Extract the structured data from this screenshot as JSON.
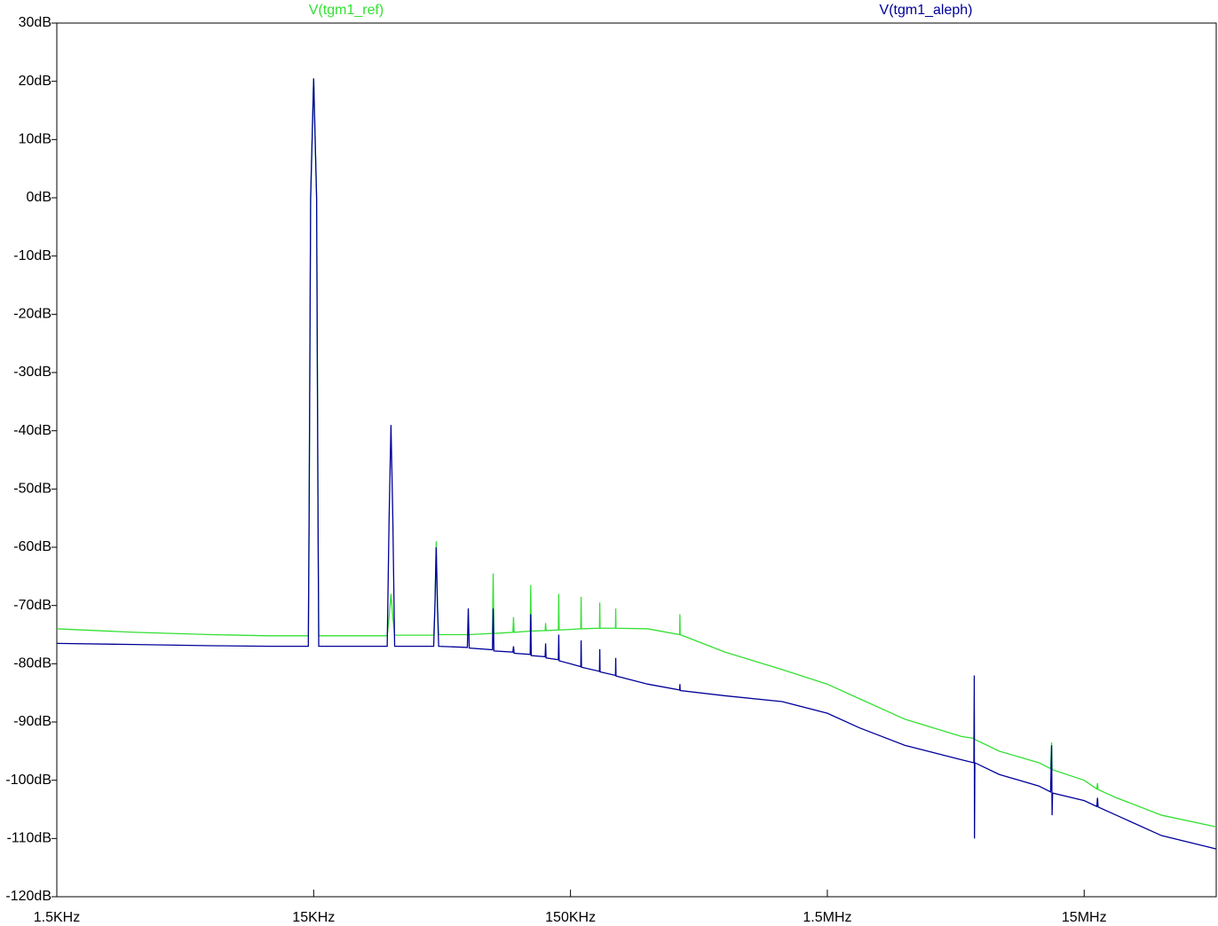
{
  "chart_data": {
    "type": "line",
    "x": [
      1500,
      3000,
      6000,
      10000,
      14000,
      14300,
      14400,
      14600,
      15000,
      15400,
      15600,
      15700,
      29000,
      29500,
      30000,
      30500,
      31000,
      44000,
      44500,
      45000,
      45500,
      46000,
      59500,
      60000,
      60500,
      74500,
      75000,
      75500,
      89500,
      90000,
      90500,
      104500,
      105000,
      105500,
      119500,
      120000,
      120500,
      134500,
      135000,
      135500,
      150000,
      164500,
      165000,
      165500,
      194500,
      195000,
      195500,
      224500,
      225000,
      225500,
      300000,
      399000,
      400000,
      401000,
      600000,
      1000000,
      1500000,
      2000000,
      3000000,
      5000000,
      5580000,
      5600000,
      5610000,
      5630000,
      7000000,
      10000000,
      11100000,
      11200000,
      11250000,
      11300000,
      15000000,
      16800000,
      16900000,
      17000000,
      20000000,
      30000000,
      49000000
    ],
    "series": [
      {
        "name": "V(tgm1_ref)",
        "color": "#33e033",
        "values": [
          -74.0,
          -74.6,
          -75.0,
          -75.2,
          -75.2,
          -75.2,
          -55,
          0,
          20.5,
          0,
          -55,
          -75.2,
          -75.2,
          -72,
          -68,
          -72,
          -75.1,
          -75.1,
          -70,
          -59,
          -70,
          -75,
          -75,
          -75,
          -75,
          -74.8,
          -64.5,
          -74.8,
          -74.6,
          -72,
          -74.6,
          -74.4,
          -66.5,
          -74.4,
          -74.3,
          -73,
          -74.3,
          -74.2,
          -68,
          -74.2,
          -74.1,
          -74.0,
          -68.5,
          -74.0,
          -73.9,
          -69.5,
          -73.9,
          -73.9,
          -70.5,
          -73.9,
          -74,
          -75,
          -71.5,
          -75,
          -78,
          -81,
          -83.5,
          -86,
          -89.5,
          -92.5,
          -92.8,
          -88,
          -93,
          -93,
          -95,
          -97,
          -98,
          -93.5,
          -98,
          -98.2,
          -100,
          -101.5,
          -100.5,
          -101.6,
          -103,
          -106,
          -108
        ]
      },
      {
        "name": "V(tgm1_aleph)",
        "color": "#000099",
        "values": [
          -76.5,
          -76.7,
          -76.9,
          -77.0,
          -77.0,
          -77.0,
          -55,
          0,
          20.5,
          0,
          -55,
          -77.0,
          -77.0,
          -55,
          -39,
          -55,
          -77,
          -77,
          -70,
          -60,
          -70,
          -77,
          -77.2,
          -70.5,
          -77.3,
          -77.6,
          -70.5,
          -77.8,
          -78,
          -77,
          -78.2,
          -78.4,
          -71.5,
          -78.6,
          -78.8,
          -76.5,
          -79,
          -79.3,
          -75,
          -79.5,
          -80.0,
          -80.5,
          -76,
          -80.6,
          -81.3,
          -77.5,
          -81.4,
          -82,
          -79,
          -82.1,
          -83.5,
          -84.5,
          -83.5,
          -84.6,
          -85.5,
          -86.5,
          -88.5,
          -91,
          -94,
          -96.5,
          -97,
          -82,
          -110,
          -97,
          -99,
          -101,
          -102,
          -94,
          -106,
          -102.2,
          -103.5,
          -104.5,
          -103,
          -104.6,
          -106,
          -109.5,
          -111.8
        ]
      }
    ],
    "xlim": [
      1500,
      49000000
    ],
    "ylim": [
      -120,
      30
    ],
    "log_x": true,
    "xticks": [
      {
        "value": 1500,
        "label": "1.5KHz"
      },
      {
        "value": 15000,
        "label": "15KHz"
      },
      {
        "value": 150000,
        "label": "150KHz"
      },
      {
        "value": 1500000,
        "label": "1.5MHz"
      },
      {
        "value": 15000000,
        "label": "15MHz"
      }
    ],
    "yticks": [
      {
        "value": 30,
        "label": "30dB"
      },
      {
        "value": 20,
        "label": "20dB"
      },
      {
        "value": 10,
        "label": "10dB"
      },
      {
        "value": 0,
        "label": "0dB"
      },
      {
        "value": -10,
        "label": "-10dB"
      },
      {
        "value": -20,
        "label": "-20dB"
      },
      {
        "value": -30,
        "label": "-30dB"
      },
      {
        "value": -40,
        "label": "-40dB"
      },
      {
        "value": -50,
        "label": "-50dB"
      },
      {
        "value": -60,
        "label": "-60dB"
      },
      {
        "value": -70,
        "label": "-70dB"
      },
      {
        "value": -80,
        "label": "-80dB"
      },
      {
        "value": -90,
        "label": "-90dB"
      },
      {
        "value": -100,
        "label": "-100dB"
      },
      {
        "value": -110,
        "label": "-110dB"
      },
      {
        "value": -120,
        "label": "-120dB"
      }
    ]
  }
}
